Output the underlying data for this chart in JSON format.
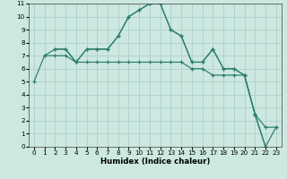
{
  "xlabel": "Humidex (Indice chaleur)",
  "line1_x": [
    0,
    1,
    2,
    3,
    4,
    5,
    6,
    7,
    8,
    9,
    10,
    11,
    12,
    13,
    14,
    15,
    16,
    17,
    18,
    19,
    20,
    21,
    22
  ],
  "line1_y": [
    5.0,
    7.0,
    7.5,
    7.5,
    6.5,
    7.5,
    7.5,
    7.5,
    8.5,
    10.0,
    10.5,
    11.0,
    11.0,
    9.0,
    8.5,
    6.5,
    6.5,
    7.5,
    6.0,
    6.0,
    5.5,
    2.5,
    0.0
  ],
  "line2_x": [
    1,
    2,
    3,
    4,
    5,
    6,
    7,
    8,
    9,
    10,
    11,
    12,
    13,
    14,
    15,
    16,
    17,
    18,
    19,
    20,
    21,
    22,
    23
  ],
  "line2_y": [
    7.0,
    7.0,
    7.0,
    6.5,
    6.5,
    6.5,
    6.5,
    6.5,
    6.5,
    6.5,
    6.5,
    6.5,
    6.5,
    6.5,
    6.0,
    6.0,
    5.5,
    5.5,
    5.5,
    5.5,
    2.5,
    1.5,
    1.5
  ],
  "line3_x": [
    2,
    3,
    4,
    5,
    6,
    7,
    8,
    9,
    10,
    11,
    12,
    13,
    14,
    15,
    16,
    17,
    18,
    19,
    20,
    21,
    22,
    23
  ],
  "line3_y": [
    7.5,
    7.5,
    6.5,
    7.5,
    7.5,
    7.5,
    8.5,
    10.0,
    10.5,
    11.0,
    11.0,
    9.0,
    8.5,
    6.5,
    6.5,
    7.5,
    6.0,
    6.0,
    5.5,
    2.5,
    0.0,
    1.5
  ],
  "line_color": "#2a7d6a",
  "bg_color": "#cce8e0",
  "grid_color": "#a8ccC4",
  "xlim_min": -0.5,
  "xlim_max": 23.5,
  "ylim_min": 0,
  "ylim_max": 11,
  "xticks": [
    0,
    1,
    2,
    3,
    4,
    5,
    6,
    7,
    8,
    9,
    10,
    11,
    12,
    13,
    14,
    15,
    16,
    17,
    18,
    19,
    20,
    21,
    22,
    23
  ],
  "yticks": [
    0,
    1,
    2,
    3,
    4,
    5,
    6,
    7,
    8,
    9,
    10,
    11
  ],
  "tick_fontsize": 5.2,
  "xlabel_fontsize": 6.2,
  "marker_size": 3.5,
  "linewidth": 0.85
}
